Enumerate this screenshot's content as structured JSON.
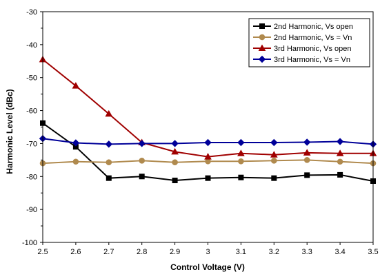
{
  "chart_data": {
    "type": "line",
    "title": "",
    "xlabel": "Control Voltage (V)",
    "ylabel": "Harmonic Level (dBc)",
    "x": [
      2.5,
      2.6,
      2.7,
      2.8,
      2.9,
      3.0,
      3.1,
      3.2,
      3.3,
      3.4,
      3.5
    ],
    "xlim": [
      2.5,
      3.5
    ],
    "ylim": [
      -100,
      -30
    ],
    "xticks": [
      "2.5",
      "2.6",
      "2.7",
      "2.8",
      "2.9",
      "3",
      "3.1",
      "3.2",
      "3.3",
      "3.4",
      "3.5"
    ],
    "yticks": [
      "-30",
      "-40",
      "-50",
      "-60",
      "-70",
      "-80",
      "-90",
      "-100"
    ],
    "legend_position": "top-right",
    "grid": false,
    "series": [
      {
        "name": "2nd Harmonic, Vs open",
        "color": "#000000",
        "marker": "square",
        "values": [
          -63.8,
          -71.0,
          -80.5,
          -80.0,
          -81.2,
          -80.5,
          -80.3,
          -80.5,
          -79.6,
          -79.5,
          -81.4
        ]
      },
      {
        "name": "2nd Harmonic, Vs = Vn",
        "color": "#b08a4e",
        "marker": "circle",
        "values": [
          -76.0,
          -75.5,
          -75.7,
          -75.2,
          -75.7,
          -75.4,
          -75.4,
          -75.2,
          -75.0,
          -75.5,
          -76.0
        ]
      },
      {
        "name": "3rd Harmonic, Vs open",
        "color": "#a00000",
        "marker": "triangle",
        "values": [
          -44.5,
          -52.5,
          -61.0,
          -69.7,
          -72.5,
          -74.0,
          -73.0,
          -73.4,
          -72.8,
          -73.0,
          -73.0
        ]
      },
      {
        "name": "3rd Harmonic, Vs = Vn",
        "color": "#000099",
        "marker": "diamond",
        "values": [
          -68.5,
          -69.8,
          -70.2,
          -70.0,
          -70.0,
          -69.7,
          -69.7,
          -69.7,
          -69.6,
          -69.4,
          -70.2
        ]
      }
    ]
  }
}
